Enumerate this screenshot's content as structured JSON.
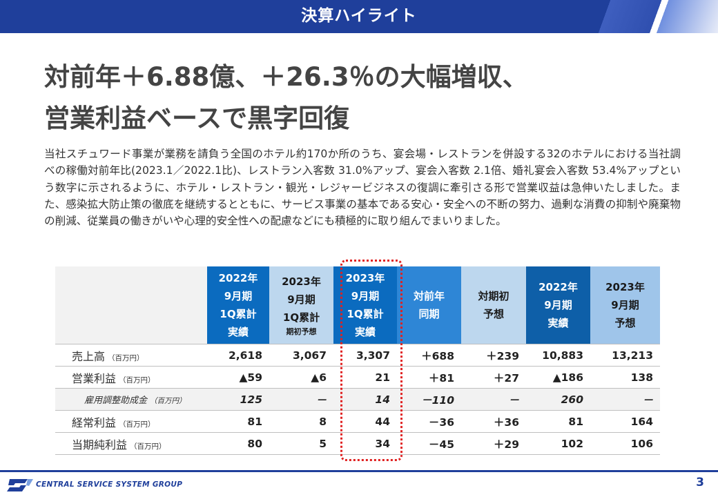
{
  "header": {
    "title": "決算ハイライト"
  },
  "headline": {
    "line1": "対前年＋6.88億、＋26.3％の大幅増収、",
    "line2": "営業利益ベースで黒字回復"
  },
  "body_text": "当社スチュワード事業が業務を請負う全国のホテル約170か所のうち、宴会場・レストランを併設する32のホテルにおける当社調べの稼働対前年比(2023.1／2022.1比)、レストラン入客数 31.0%アップ、宴会入客数 2.1倍、婚礼宴会入客数 53.4%アップという数字に示されるように、ホテル・レストラン・観光・レジャービジネスの復調に牽引さる形で営業収益は急伸いたしました。また、感染拡大防止策の徹底を継続するとともに、サービス事業の基本である安心・安全への不断の努力、過剰な消費の抑制や廃棄物の削減、従業員の働きがいや心理的安全性への配慮などにも積極的に取り組んでまいりました。",
  "table": {
    "headers": [
      {
        "lines": [
          "2022年",
          "9月期",
          "1Q累計",
          "実績"
        ],
        "sub": ""
      },
      {
        "lines": [
          "2023年",
          "9月期",
          "1Q累計"
        ],
        "sub": "期初予想"
      },
      {
        "lines": [
          "2023年",
          "9月期",
          "1Q累計",
          "実績"
        ],
        "sub": ""
      },
      {
        "lines": [
          "対前年",
          "同期"
        ],
        "sub": ""
      },
      {
        "lines": [
          "対期初",
          "予想"
        ],
        "sub": ""
      },
      {
        "lines": [
          "2022年",
          "9月期",
          "実績"
        ],
        "sub": ""
      },
      {
        "lines": [
          "2023年",
          "9月期",
          "予想"
        ],
        "sub": ""
      }
    ],
    "rows": [
      {
        "label": "売上高",
        "unit": "（百万円）",
        "values": [
          "2,618",
          "3,067",
          "3,307",
          "＋688",
          "＋239",
          "10,883",
          "13,213"
        ]
      },
      {
        "label": "営業利益",
        "unit": "（百万円）",
        "values": [
          "▲59",
          "▲6",
          "21",
          "＋81",
          "＋27",
          "▲186",
          "138"
        ]
      },
      {
        "label": "雇用調整助成金",
        "unit": "（百万円）",
        "values": [
          "125",
          "－",
          "14",
          "－110",
          "－",
          "260",
          "－"
        ]
      },
      {
        "label": "経常利益",
        "unit": "（百万円）",
        "values": [
          "81",
          "8",
          "44",
          "－36",
          "＋36",
          "81",
          "164"
        ]
      },
      {
        "label": "当期純利益",
        "unit": "（百万円）",
        "values": [
          "80",
          "5",
          "34",
          "－45",
          "＋29",
          "102",
          "106"
        ]
      }
    ]
  },
  "footer": {
    "company": "CENTRAL SERVICE SYSTEM GROUP",
    "page": "3"
  },
  "colors": {
    "brand": "#1f3f9b",
    "header_dark": "#0b6bbf",
    "header_light": "#bdd7ee",
    "highlight": "#e02020"
  }
}
